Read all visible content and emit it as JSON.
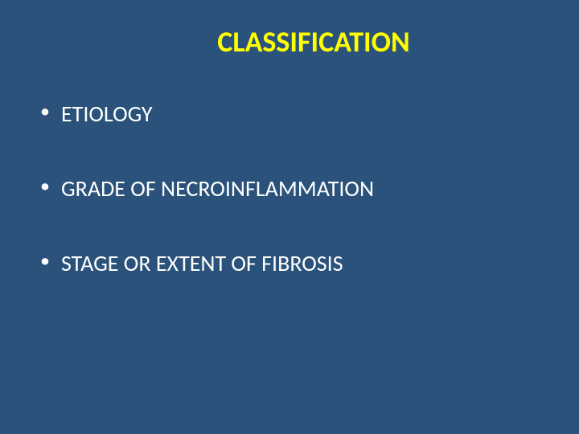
{
  "slide": {
    "background_color": "#2a527a",
    "title": {
      "text": "CLASSIFICATION",
      "color": "#ffff00",
      "font_size": 36,
      "font_weight": "bold"
    },
    "bullets": [
      {
        "text": "ETIOLOGY",
        "color": "#ffffff",
        "font_size": 28
      },
      {
        "text": "GRADE OF NECROINFLAMMATION",
        "color": "#ffffff",
        "font_size": 28
      },
      {
        "text": "STAGE OR EXTENT OF FIBROSIS",
        "color": "#ffffff",
        "font_size": 28
      }
    ],
    "bullet_marker_color": "#ffffff"
  }
}
